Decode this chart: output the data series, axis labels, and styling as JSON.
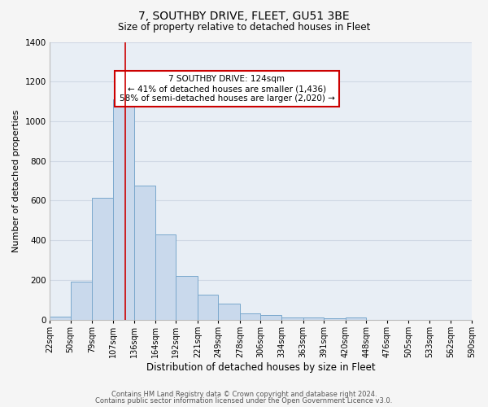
{
  "title": "7, SOUTHBY DRIVE, FLEET, GU51 3BE",
  "subtitle": "Size of property relative to detached houses in Fleet",
  "xlabel": "Distribution of detached houses by size in Fleet",
  "ylabel": "Number of detached properties",
  "bar_color": "#c9d9ec",
  "bar_edge_color": "#7aa8cc",
  "background_color": "#f5f5f5",
  "plot_bg_color": "#e8eef5",
  "grid_color": "#d0d8e4",
  "annotation_line_color": "#cc0000",
  "annotation_box_edge_color": "#cc0000",
  "annotation_line1": "7 SOUTHBY DRIVE: 124sqm",
  "annotation_line2": "← 41% of detached houses are smaller (1,436)",
  "annotation_line3": "58% of semi-detached houses are larger (2,020) →",
  "vline_x": 124,
  "categories": [
    "22sqm",
    "50sqm",
    "79sqm",
    "107sqm",
    "136sqm",
    "164sqm",
    "192sqm",
    "221sqm",
    "249sqm",
    "278sqm",
    "306sqm",
    "334sqm",
    "363sqm",
    "391sqm",
    "420sqm",
    "448sqm",
    "476sqm",
    "505sqm",
    "533sqm",
    "562sqm",
    "590sqm"
  ],
  "bin_edges": [
    22,
    50,
    79,
    107,
    136,
    164,
    192,
    221,
    249,
    278,
    306,
    334,
    363,
    391,
    420,
    448,
    476,
    505,
    533,
    562,
    590
  ],
  "values": [
    15,
    190,
    615,
    1110,
    675,
    430,
    220,
    125,
    80,
    30,
    25,
    10,
    10,
    5,
    10,
    0,
    0,
    0,
    0,
    0
  ],
  "ylim": [
    0,
    1400
  ],
  "yticks": [
    0,
    200,
    400,
    600,
    800,
    1000,
    1200,
    1400
  ],
  "footer1": "Contains HM Land Registry data © Crown copyright and database right 2024.",
  "footer2": "Contains public sector information licensed under the Open Government Licence v3.0."
}
